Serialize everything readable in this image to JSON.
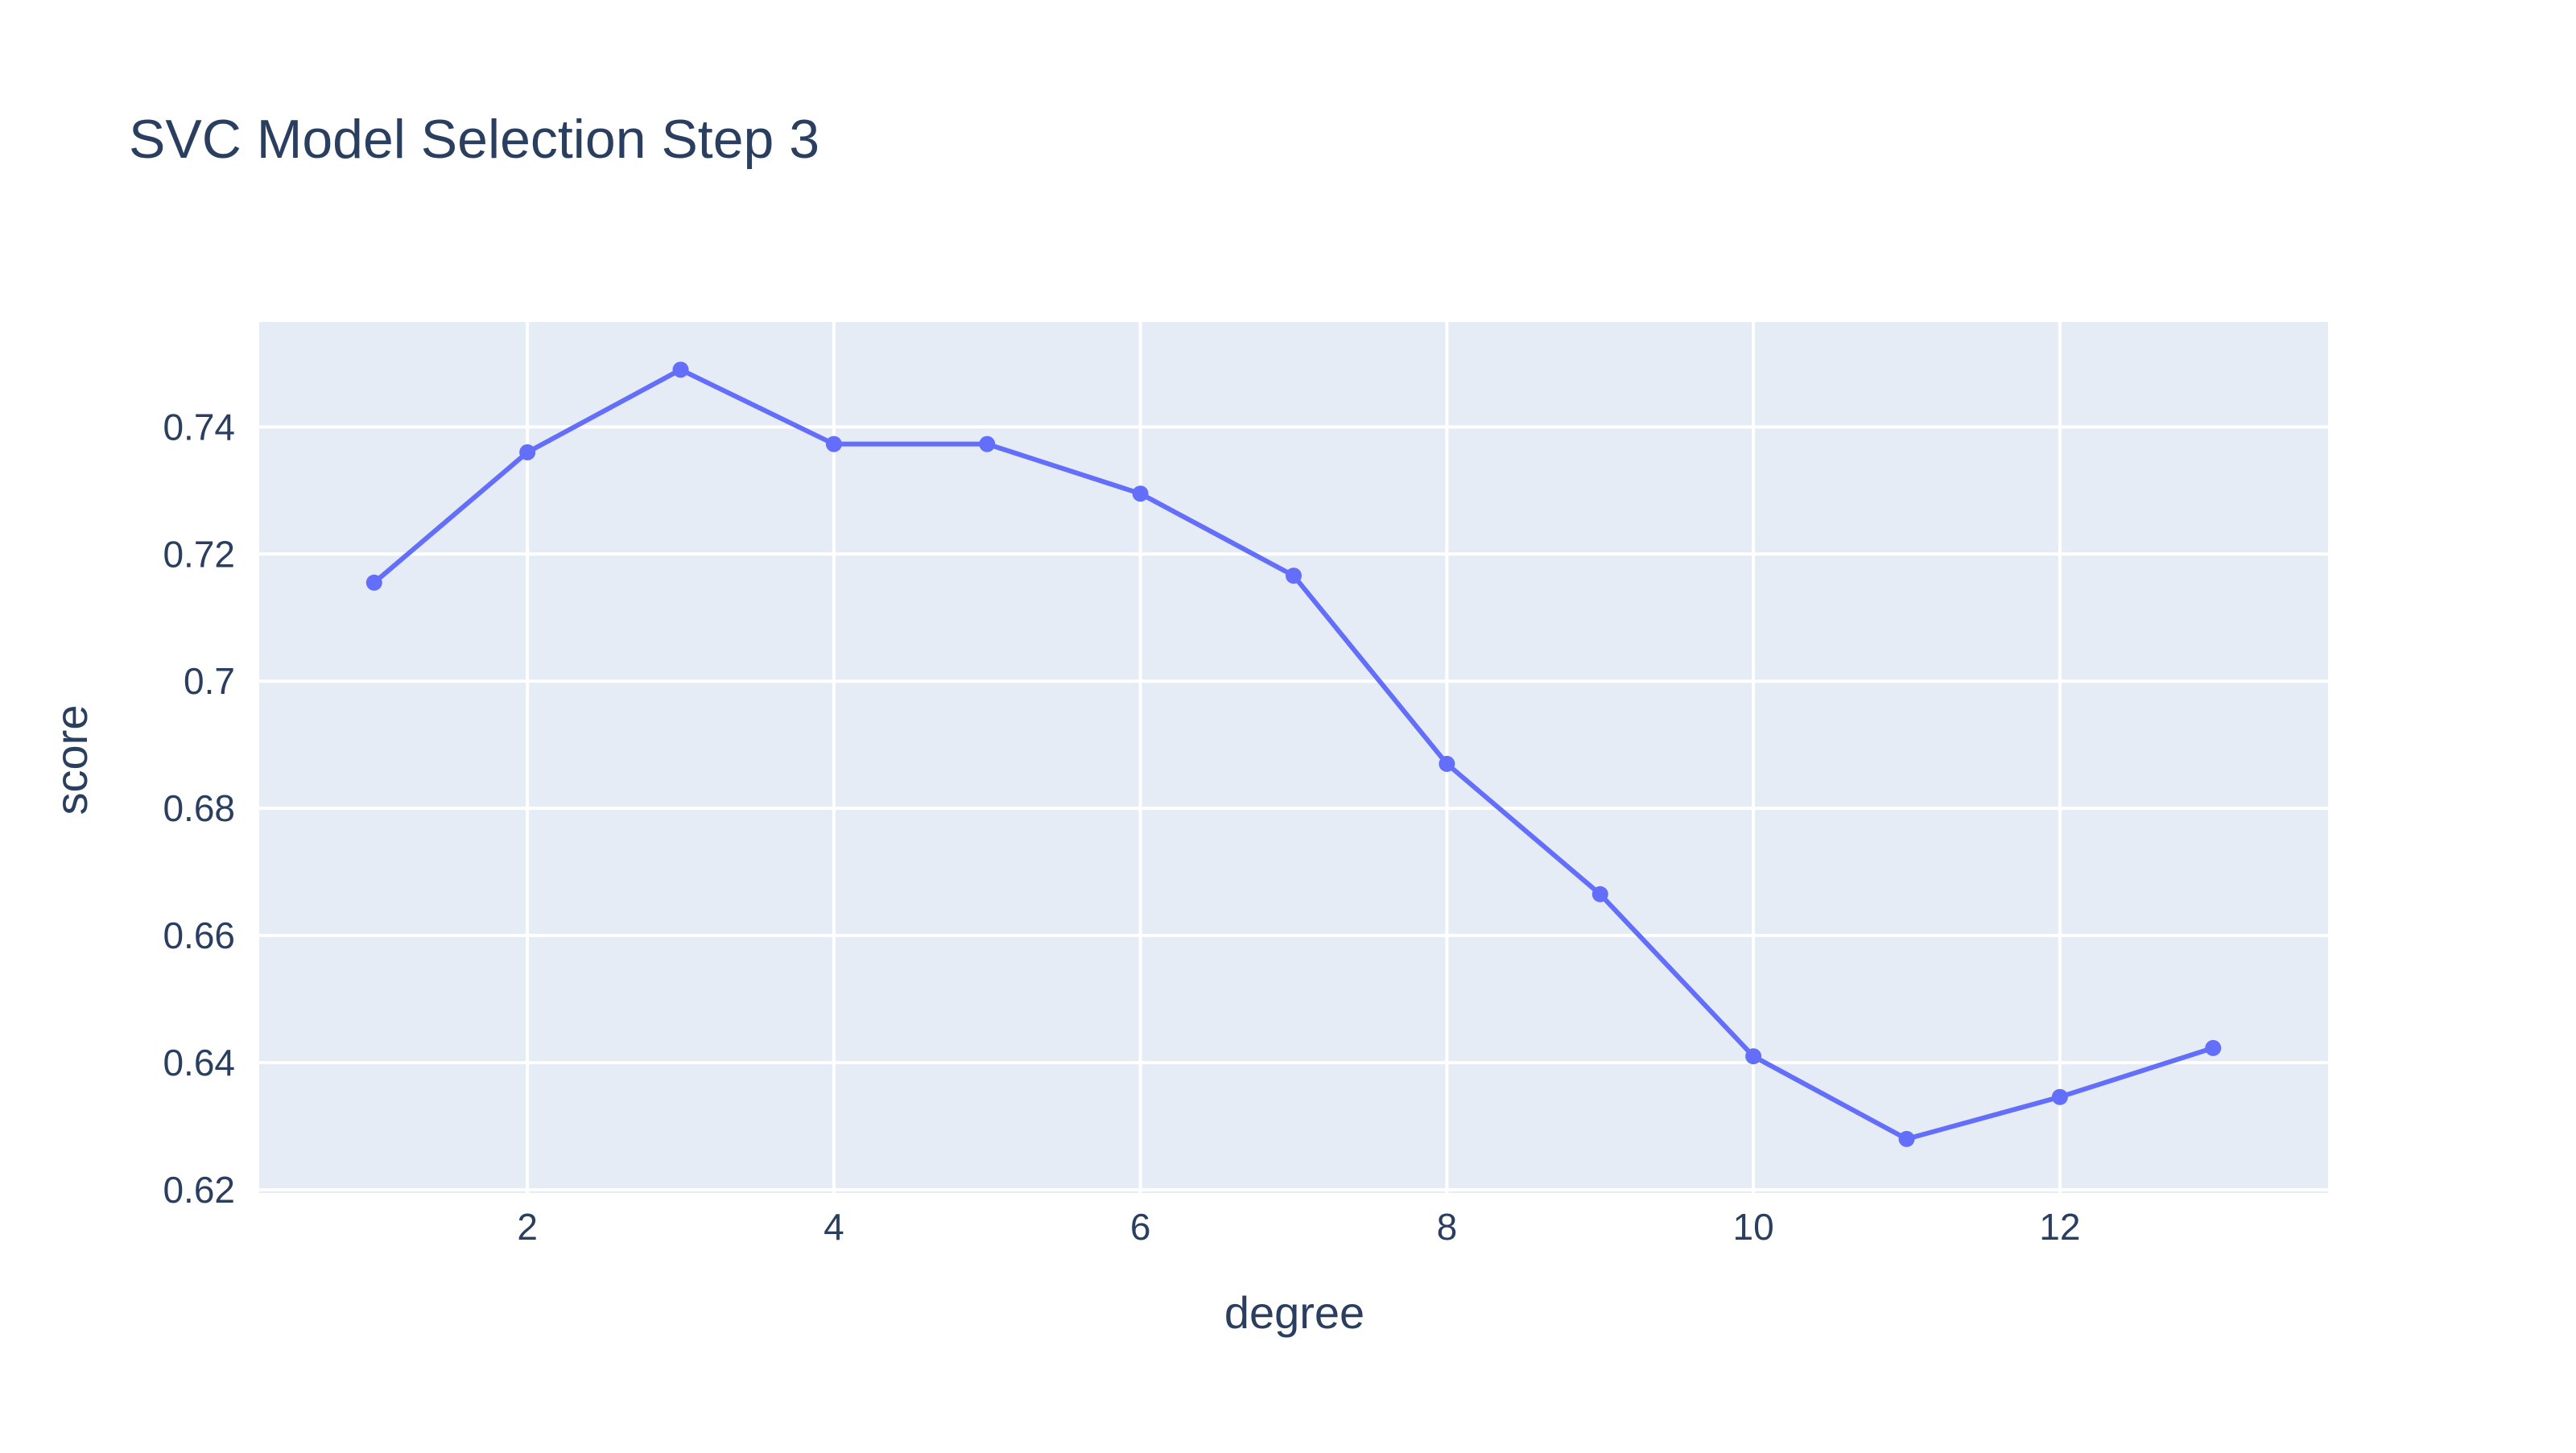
{
  "colors": {
    "background": "#ffffff",
    "plot_background": "#e5ecf6",
    "grid": "#ffffff",
    "text": "#2a3f5f",
    "series": "#636efa"
  },
  "chart_data": {
    "type": "line",
    "title": "SVC Model Selection Step 3",
    "xlabel": "degree",
    "ylabel": "score",
    "xlim": [
      0.25,
      13.75
    ],
    "ylim": [
      0.6195,
      0.7565
    ],
    "grid": true,
    "markers": true,
    "x_ticks": [
      2,
      4,
      6,
      8,
      10,
      12
    ],
    "x_tick_labels": [
      "2",
      "4",
      "6",
      "8",
      "10",
      "12"
    ],
    "y_ticks": [
      0.62,
      0.64,
      0.66,
      0.68,
      0.7,
      0.72,
      0.74
    ],
    "y_tick_labels": [
      "0.62",
      "0.64",
      "0.66",
      "0.68",
      "0.7",
      "0.72",
      "0.74"
    ],
    "series": [
      {
        "x": [
          1,
          2,
          3,
          4,
          5,
          6,
          7,
          8,
          9,
          10,
          11,
          12,
          13
        ],
        "y": [
          0.7155,
          0.736,
          0.749,
          0.7373,
          0.7373,
          0.7295,
          0.7166,
          0.687,
          0.6665,
          0.641,
          0.628,
          0.6346,
          0.6423
        ]
      }
    ]
  }
}
